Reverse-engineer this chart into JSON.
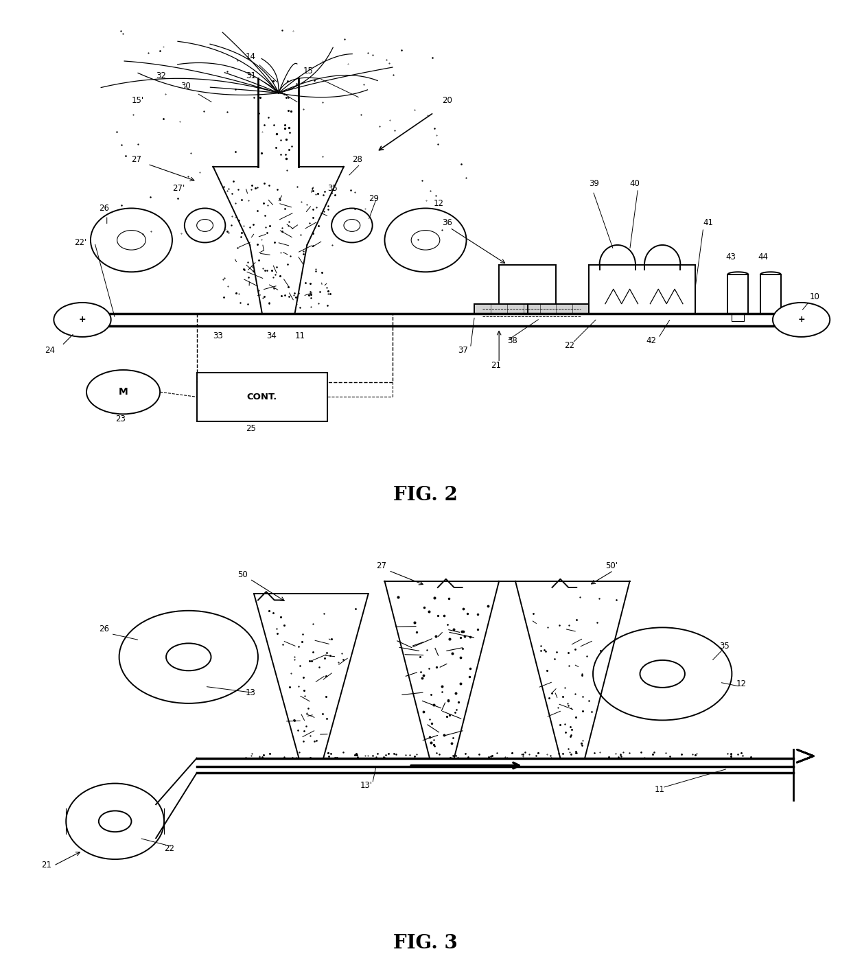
{
  "fig_title1": "FIG. 2",
  "fig_title2": "FIG. 3",
  "bg_color": "#ffffff",
  "line_color": "#000000",
  "text_color": "#000000",
  "fig_width": 12.4,
  "fig_height": 14.28,
  "dpi": 100
}
